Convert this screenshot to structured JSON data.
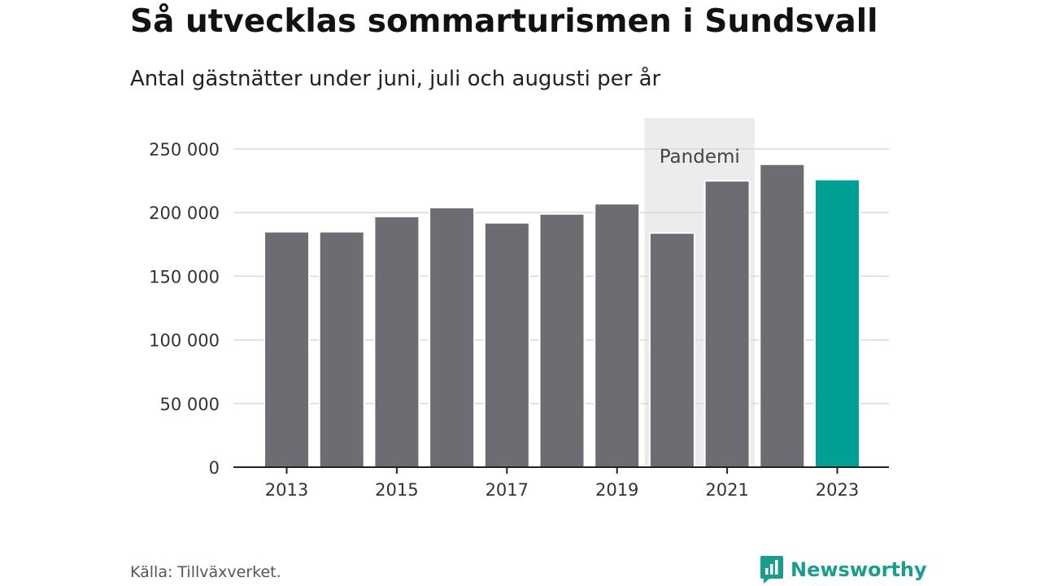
{
  "header": {
    "title": "Så utvecklas sommarturismen i Sundsvall",
    "subtitle": "Antal gästnätter under juni, juli och augusti per år"
  },
  "footer": {
    "source": "Källa: Tillväxverket.",
    "brand": "Newsworthy",
    "brand_icon": "newsworthy-logo-icon"
  },
  "colors": {
    "bar": "#6d6c72",
    "highlight": "#00a095",
    "band": "#ececec",
    "grid": "#d9d9d9",
    "axis": "#222222",
    "brand": "#1a9c8f"
  },
  "chart_data": {
    "type": "bar",
    "categories": [
      "2013",
      "2014",
      "2015",
      "2016",
      "2017",
      "2018",
      "2019",
      "2020",
      "2021",
      "2022",
      "2023"
    ],
    "values": [
      185000,
      185000,
      197000,
      204000,
      192000,
      199000,
      207000,
      184000,
      225000,
      238000,
      226000
    ],
    "highlight_category": "2023",
    "x_tick_labels": [
      "2013",
      "2015",
      "2017",
      "2019",
      "2021",
      "2023"
    ],
    "y_ticks": [
      0,
      50000,
      100000,
      150000,
      200000,
      250000
    ],
    "y_tick_labels": [
      "0",
      "50 000",
      "100 000",
      "150 000",
      "200 000",
      "250 000"
    ],
    "ylim": [
      0,
      250000
    ],
    "grid": true,
    "annotation": {
      "label": "Pandemi",
      "from": "2020",
      "to": "2021"
    }
  }
}
